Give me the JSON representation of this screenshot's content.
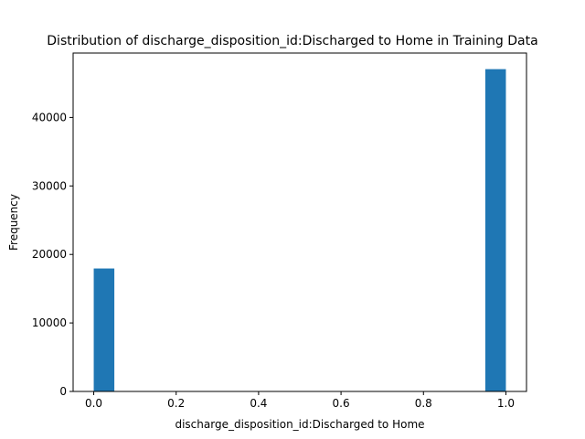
{
  "chart_data": {
    "type": "bar",
    "title": "Distribution of discharge_disposition_id:Discharged to Home in Training Data",
    "xlabel": "discharge_disposition_id:Discharged to Home",
    "ylabel": "Frequency",
    "xlim": [
      -0.05,
      1.05
    ],
    "ylim": [
      0,
      49400
    ],
    "xticks": [
      0.0,
      0.2,
      0.4,
      0.6,
      0.8,
      1.0
    ],
    "xtick_labels": [
      "0.0",
      "0.2",
      "0.4",
      "0.6",
      "0.8",
      "1.0"
    ],
    "yticks": [
      0,
      10000,
      20000,
      30000,
      40000
    ],
    "ytick_labels": [
      "0",
      "10000",
      "20000",
      "30000",
      "40000"
    ],
    "grid": false,
    "bins": [
      {
        "x0": 0.0,
        "x1": 0.05,
        "value": 17950
      },
      {
        "x0": 0.95,
        "x1": 1.0,
        "value": 47050
      }
    ],
    "color": "#1f77b4"
  }
}
